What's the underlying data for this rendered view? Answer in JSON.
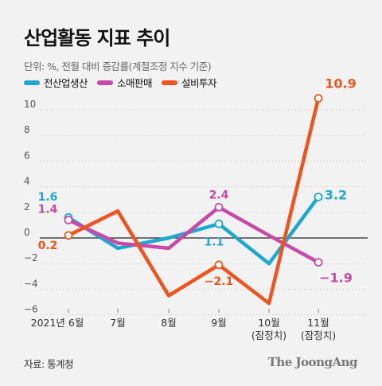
{
  "title": "산업활동 지표 추이",
  "subtitle": "단위: %, 전월 대비 증감률(계절조정 지수 기준)",
  "source": "자료: 통계청",
  "brand": "The JoongAng",
  "chart_data": {
    "type": "line",
    "categories": [
      "2021년 6월",
      "7월",
      "8월",
      "9월",
      "10월\n(잠정치)",
      "11월\n(잠정치)"
    ],
    "ylim": [
      -6,
      12
    ],
    "yticks": [
      -6,
      -4,
      -2,
      0,
      2,
      4,
      6,
      8,
      10
    ],
    "series": [
      {
        "name": "전산업생산",
        "color": "#1ea7cf",
        "values": [
          1.6,
          -0.8,
          0.0,
          1.1,
          -2.0,
          3.2
        ],
        "labels": [
          {
            "index": 0,
            "text": "1.6"
          },
          {
            "index": 3,
            "text": "1.1"
          },
          {
            "index": 5,
            "text": "3.2"
          }
        ]
      },
      {
        "name": "소매판매",
        "color": "#c94aa6",
        "values": [
          1.4,
          -0.4,
          -0.8,
          2.4,
          0.2,
          -1.9
        ],
        "labels": [
          {
            "index": 0,
            "text": "1.4"
          },
          {
            "index": 3,
            "text": "2.4"
          },
          {
            "index": 5,
            "text": "−1.9"
          }
        ]
      },
      {
        "name": "설비투자",
        "color": "#f0541e",
        "values": [
          0.2,
          2.1,
          -4.5,
          -2.1,
          -5.1,
          10.9
        ],
        "labels": [
          {
            "index": 0,
            "text": "0.2"
          },
          {
            "index": 3,
            "text": "−2.1"
          },
          {
            "index": 5,
            "text": "10.9"
          }
        ]
      }
    ]
  }
}
